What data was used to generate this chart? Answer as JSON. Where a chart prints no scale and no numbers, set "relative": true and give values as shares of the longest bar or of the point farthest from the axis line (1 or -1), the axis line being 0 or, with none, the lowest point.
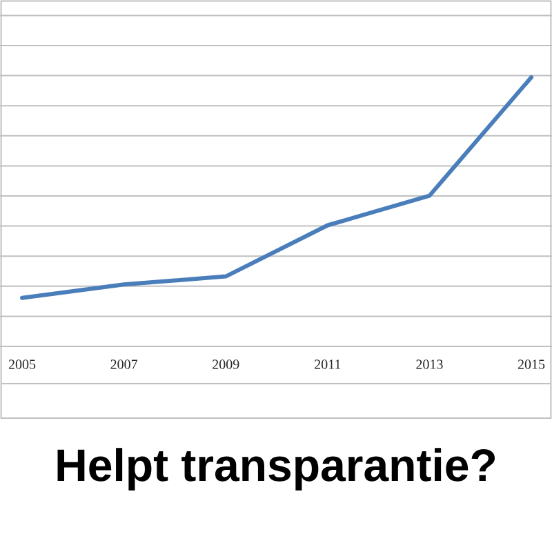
{
  "chart_data": {
    "type": "line",
    "title": "Helpt transparantie?",
    "categories": [
      "2005",
      "2007",
      "2009",
      "2011",
      "2013",
      "2015"
    ],
    "relative": true,
    "values": [
      0.18,
      0.23,
      0.26,
      0.45,
      0.56,
      1
    ],
    "color": "#4a7ebb",
    "grid": "y",
    "marker": "none",
    "line_style": "solid"
  }
}
